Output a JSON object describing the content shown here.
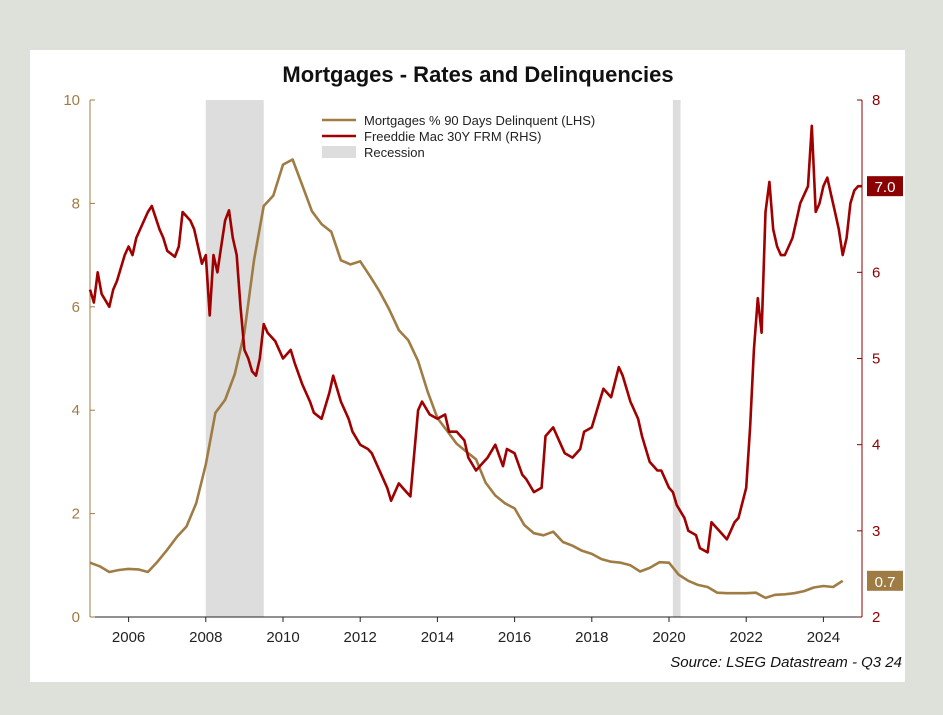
{
  "chart_data": {
    "type": "line",
    "title": "Mortgages - Rates and Delinquencies",
    "source": "Source: LSEG Datastream - Q3 24",
    "x_range": [
      2005.0,
      2025.0
    ],
    "x_ticks": [
      "2006",
      "2008",
      "2010",
      "2012",
      "2014",
      "2016",
      "2018",
      "2020",
      "2022",
      "2024"
    ],
    "lhs": {
      "ylim": [
        0,
        10
      ],
      "ticks": [
        "0",
        "2",
        "4",
        "6",
        "8",
        "10"
      ],
      "color": "#a07c45"
    },
    "rhs": {
      "ylim": [
        2,
        8
      ],
      "ticks": [
        "2",
        "3",
        "4",
        "5",
        "6",
        "7",
        "8"
      ],
      "color": "#8b0000"
    },
    "recessions": [
      {
        "start": 2008.0,
        "end": 2009.5
      },
      {
        "start": 2020.1,
        "end": 2020.3
      }
    ],
    "legend": {
      "position": "top-center",
      "items": [
        {
          "label": "Mortgages % 90 Days Delinquent (LHS)",
          "color": "#a07c45",
          "kind": "line"
        },
        {
          "label": "Freeddie Mac 30Y FRM (RHS)",
          "color": "#a00000",
          "kind": "line"
        },
        {
          "label": "Recession",
          "color": "#dddddd",
          "kind": "box"
        }
      ]
    },
    "series": [
      {
        "name": "Mortgages % 90 Days Delinquent (LHS)",
        "axis": "lhs",
        "color": "#a07c45",
        "last_label": "0.7",
        "x": [
          2005.0,
          2005.25,
          2005.5,
          2005.75,
          2006.0,
          2006.25,
          2006.5,
          2006.75,
          2007.0,
          2007.25,
          2007.5,
          2007.75,
          2008.0,
          2008.25,
          2008.5,
          2008.75,
          2009.0,
          2009.25,
          2009.5,
          2009.75,
          2010.0,
          2010.25,
          2010.5,
          2010.75,
          2011.0,
          2011.25,
          2011.5,
          2011.75,
          2012.0,
          2012.25,
          2012.5,
          2012.75,
          2013.0,
          2013.25,
          2013.5,
          2013.75,
          2014.0,
          2014.25,
          2014.5,
          2014.75,
          2015.0,
          2015.25,
          2015.5,
          2015.75,
          2016.0,
          2016.25,
          2016.5,
          2016.75,
          2017.0,
          2017.25,
          2017.5,
          2017.75,
          2018.0,
          2018.25,
          2018.5,
          2018.75,
          2019.0,
          2019.25,
          2019.5,
          2019.75,
          2020.0,
          2020.25,
          2020.5,
          2020.75,
          2021.0,
          2021.25,
          2021.5,
          2021.75,
          2022.0,
          2022.25,
          2022.5,
          2022.75,
          2023.0,
          2023.25,
          2023.5,
          2023.75,
          2024.0,
          2024.25,
          2024.5
        ],
        "values": [
          1.05,
          0.98,
          0.87,
          0.91,
          0.93,
          0.92,
          0.87,
          1.07,
          1.3,
          1.55,
          1.75,
          2.2,
          2.95,
          3.95,
          4.2,
          4.7,
          5.5,
          6.9,
          7.95,
          8.15,
          8.75,
          8.85,
          8.35,
          7.85,
          7.6,
          7.45,
          6.9,
          6.82,
          6.88,
          6.6,
          6.3,
          5.95,
          5.55,
          5.35,
          4.95,
          4.35,
          3.85,
          3.6,
          3.35,
          3.2,
          3.05,
          2.6,
          2.35,
          2.2,
          2.1,
          1.78,
          1.62,
          1.58,
          1.65,
          1.45,
          1.38,
          1.28,
          1.22,
          1.12,
          1.07,
          1.05,
          1.0,
          0.88,
          0.95,
          1.06,
          1.05,
          0.82,
          0.7,
          0.62,
          0.58,
          0.47,
          0.46,
          0.46,
          0.46,
          0.47,
          0.37,
          0.43,
          0.44,
          0.46,
          0.5,
          0.57,
          0.6,
          0.58,
          0.7
        ]
      },
      {
        "name": "Freeddie Mac 30Y FRM (RHS)",
        "axis": "rhs",
        "color": "#a00000",
        "last_label": "7.0",
        "x": [
          2005.0,
          2005.1,
          2005.2,
          2005.3,
          2005.5,
          2005.6,
          2005.7,
          2005.9,
          2006.0,
          2006.1,
          2006.2,
          2006.4,
          2006.5,
          2006.6,
          2006.8,
          2006.9,
          2007.0,
          2007.2,
          2007.3,
          2007.4,
          2007.6,
          2007.7,
          2007.9,
          2008.0,
          2008.1,
          2008.2,
          2008.3,
          2008.4,
          2008.5,
          2008.6,
          2008.7,
          2008.8,
          2008.9,
          2009.0,
          2009.1,
          2009.2,
          2009.3,
          2009.4,
          2009.5,
          2009.6,
          2009.8,
          2010.0,
          2010.2,
          2010.3,
          2010.5,
          2010.7,
          2010.8,
          2011.0,
          2011.2,
          2011.3,
          2011.5,
          2011.7,
          2011.8,
          2012.0,
          2012.2,
          2012.3,
          2012.5,
          2012.7,
          2012.8,
          2013.0,
          2013.2,
          2013.3,
          2013.5,
          2013.6,
          2013.8,
          2014.0,
          2014.2,
          2014.3,
          2014.5,
          2014.7,
          2014.8,
          2015.0,
          2015.2,
          2015.3,
          2015.5,
          2015.7,
          2015.8,
          2016.0,
          2016.2,
          2016.3,
          2016.5,
          2016.7,
          2016.8,
          2017.0,
          2017.2,
          2017.3,
          2017.5,
          2017.7,
          2017.8,
          2018.0,
          2018.2,
          2018.3,
          2018.5,
          2018.7,
          2018.8,
          2019.0,
          2019.2,
          2019.3,
          2019.5,
          2019.7,
          2019.8,
          2020.0,
          2020.1,
          2020.2,
          2020.4,
          2020.5,
          2020.7,
          2020.8,
          2021.0,
          2021.1,
          2021.3,
          2021.5,
          2021.7,
          2021.8,
          2022.0,
          2022.1,
          2022.2,
          2022.3,
          2022.4,
          2022.5,
          2022.6,
          2022.7,
          2022.8,
          2022.9,
          2023.0,
          2023.1,
          2023.2,
          2023.3,
          2023.4,
          2023.5,
          2023.6,
          2023.7,
          2023.8,
          2023.9,
          2024.0,
          2024.1,
          2024.2,
          2024.3,
          2024.4,
          2024.5,
          2024.6,
          2024.7,
          2024.8,
          2024.9,
          2025.0
        ],
        "values": [
          5.8,
          5.65,
          6.0,
          5.75,
          5.6,
          5.8,
          5.9,
          6.2,
          6.3,
          6.2,
          6.4,
          6.6,
          6.7,
          6.77,
          6.5,
          6.4,
          6.25,
          6.18,
          6.3,
          6.7,
          6.6,
          6.5,
          6.1,
          6.2,
          5.5,
          6.2,
          6.0,
          6.3,
          6.6,
          6.72,
          6.4,
          6.2,
          5.6,
          5.1,
          5.0,
          4.85,
          4.8,
          5.0,
          5.4,
          5.3,
          5.2,
          5.0,
          5.1,
          4.95,
          4.7,
          4.5,
          4.37,
          4.3,
          4.6,
          4.8,
          4.5,
          4.3,
          4.15,
          4.0,
          3.95,
          3.9,
          3.7,
          3.5,
          3.35,
          3.55,
          3.45,
          3.4,
          4.4,
          4.5,
          4.35,
          4.3,
          4.35,
          4.15,
          4.15,
          4.05,
          3.85,
          3.7,
          3.8,
          3.85,
          4.0,
          3.75,
          3.95,
          3.9,
          3.65,
          3.6,
          3.45,
          3.5,
          4.1,
          4.2,
          4.0,
          3.9,
          3.85,
          3.95,
          4.15,
          4.2,
          4.5,
          4.65,
          4.55,
          4.9,
          4.8,
          4.5,
          4.3,
          4.1,
          3.8,
          3.7,
          3.7,
          3.5,
          3.45,
          3.3,
          3.15,
          3.0,
          2.95,
          2.8,
          2.75,
          3.1,
          3.0,
          2.9,
          3.1,
          3.15,
          3.5,
          4.2,
          5.1,
          5.7,
          5.3,
          6.7,
          7.05,
          6.5,
          6.3,
          6.2,
          6.2,
          6.3,
          6.4,
          6.6,
          6.8,
          6.9,
          7.0,
          7.7,
          6.7,
          6.8,
          7.0,
          7.1,
          6.9,
          6.7,
          6.5,
          6.2,
          6.4,
          6.8,
          6.95,
          7.0,
          7.0
        ]
      }
    ]
  }
}
